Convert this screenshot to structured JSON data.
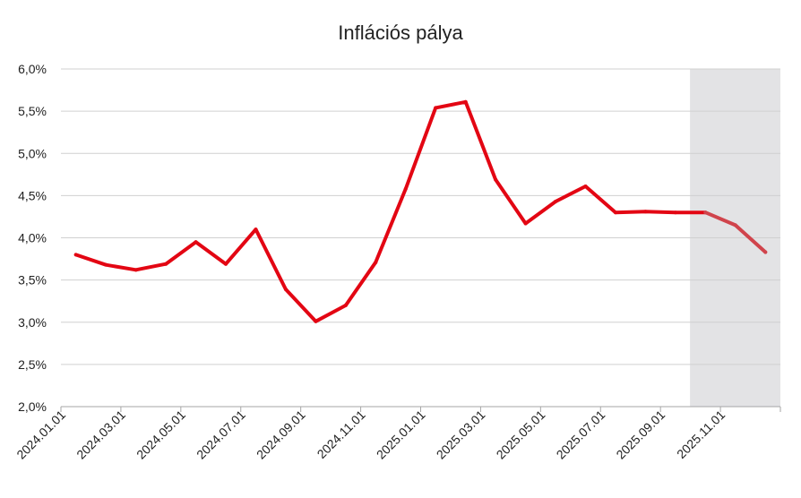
{
  "chart_data": {
    "type": "line",
    "title": "Inflációs pálya",
    "xlabel": "",
    "ylabel": "",
    "ylim": [
      2.0,
      6.0
    ],
    "y_ticks": [
      "2,0%",
      "2,5%",
      "3,0%",
      "3,5%",
      "4,0%",
      "4,5%",
      "5,0%",
      "5,5%",
      "6,0%"
    ],
    "x_tick_labels": [
      "2024.01.01",
      "2024.03.01",
      "2024.05.01",
      "2024.07.01",
      "2024.09.01",
      "2024.11.01",
      "2025.01.01",
      "2025.03.01",
      "2025.05.01",
      "2025.07.01",
      "2025.09.01",
      "2025.11.01"
    ],
    "x": [
      "2024.01.01",
      "2024.02.01",
      "2024.03.01",
      "2024.04.01",
      "2024.05.01",
      "2024.06.01",
      "2024.07.01",
      "2024.08.01",
      "2024.09.01",
      "2024.10.01",
      "2024.11.01",
      "2024.12.01",
      "2025.01.01",
      "2025.02.01",
      "2025.03.01",
      "2025.04.01",
      "2025.05.01",
      "2025.06.01",
      "2025.07.01",
      "2025.08.01",
      "2025.09.01",
      "2025.10.01",
      "2025.11.01",
      "2025.12.01"
    ],
    "series": [
      {
        "values": [
          3.8,
          3.68,
          3.62,
          3.69,
          3.95,
          3.69,
          4.1,
          3.39,
          3.01,
          3.2,
          3.71,
          4.58,
          5.54,
          5.61,
          4.69,
          4.17,
          4.43,
          4.61,
          4.3,
          4.31,
          4.3,
          4.3,
          4.15,
          3.83
        ],
        "color": "#e30613",
        "forecast_color": "#d0444c"
      }
    ],
    "forecast_start": "2025.10.01",
    "shaded_region": {
      "from": "2025.10.01",
      "to": "2025.12.01",
      "color": "#e3e3e5"
    },
    "grid": true,
    "legend": "none"
  }
}
